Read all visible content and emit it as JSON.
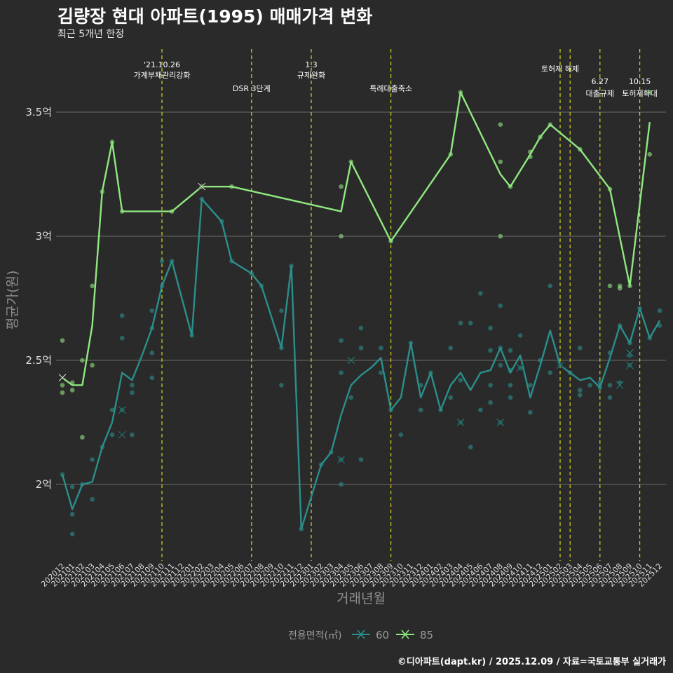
{
  "title": "김량장 현대 아파트(1995) 매매가격 변화",
  "subtitle": "최근 5개년 한정",
  "caption": "©디아파트(dapt.kr) / 2025.12.09 / 자료=국토교통부 실거래가",
  "chart_data": {
    "type": "line",
    "xlabel": "거래년월",
    "ylabel": "평균가(원)",
    "ylim": [
      1.7,
      3.75
    ],
    "yticks": [
      {
        "v": 2.0,
        "label": "2억"
      },
      {
        "v": 2.5,
        "label": "2.5억"
      },
      {
        "v": 3.0,
        "label": "3억"
      },
      {
        "v": 3.5,
        "label": "3.5억"
      }
    ],
    "months": [
      "202012",
      "202101",
      "202102",
      "202103",
      "202104",
      "202105",
      "202106",
      "202107",
      "202108",
      "202109",
      "202110",
      "202111",
      "202112",
      "202201",
      "202202",
      "202203",
      "202204",
      "202205",
      "202206",
      "202207",
      "202208",
      "202209",
      "202210",
      "202211",
      "202212",
      "202301",
      "202302",
      "202303",
      "202304",
      "202305",
      "202306",
      "202307",
      "202308",
      "202309",
      "202310",
      "202311",
      "202312",
      "202401",
      "202402",
      "202403",
      "202404",
      "202405",
      "202406",
      "202407",
      "202408",
      "202409",
      "202410",
      "202411",
      "202412",
      "202501",
      "202502",
      "202503",
      "202504",
      "202505",
      "202506",
      "202507",
      "202508",
      "202509",
      "202510",
      "202511",
      "202512"
    ],
    "legend": {
      "title": "전용면적(㎡)",
      "position": "bottom"
    },
    "series": [
      {
        "name": "60",
        "color": "#2a8f8b",
        "points": [
          [
            0,
            2.04
          ],
          [
            1,
            1.9
          ],
          [
            2,
            2.0
          ],
          [
            3,
            2.01
          ],
          [
            4,
            2.15
          ],
          [
            5,
            2.25
          ],
          [
            6,
            2.45
          ],
          [
            7,
            2.42
          ],
          [
            8,
            2.52
          ],
          [
            9,
            2.63
          ],
          [
            10,
            2.8
          ],
          [
            11,
            2.9
          ],
          [
            13,
            2.6
          ],
          [
            14,
            3.15
          ],
          [
            16,
            3.06
          ],
          [
            17,
            2.9
          ],
          [
            19,
            2.85
          ],
          [
            20,
            2.8
          ],
          [
            22,
            2.55
          ],
          [
            23,
            2.88
          ],
          [
            24,
            1.82
          ],
          [
            26,
            2.08
          ],
          [
            27,
            2.13
          ],
          [
            28,
            2.28
          ],
          [
            29,
            2.4
          ],
          [
            30,
            2.44
          ],
          [
            31,
            2.47
          ],
          [
            32,
            2.51
          ],
          [
            33,
            2.3
          ],
          [
            34,
            2.35
          ],
          [
            35,
            2.57
          ],
          [
            36,
            2.35
          ],
          [
            37,
            2.45
          ],
          [
            38,
            2.3
          ],
          [
            39,
            2.4
          ],
          [
            40,
            2.45
          ],
          [
            41,
            2.38
          ],
          [
            42,
            2.45
          ],
          [
            43,
            2.46
          ],
          [
            44,
            2.55
          ],
          [
            45,
            2.45
          ],
          [
            46,
            2.52
          ],
          [
            47,
            2.35
          ],
          [
            48,
            2.48
          ],
          [
            49,
            2.62
          ],
          [
            50,
            2.48
          ],
          [
            51,
            2.45
          ],
          [
            52,
            2.42
          ],
          [
            53,
            2.43
          ],
          [
            54,
            2.39
          ],
          [
            55,
            2.51
          ],
          [
            56,
            2.64
          ],
          [
            57,
            2.57
          ],
          [
            58,
            2.71
          ],
          [
            59,
            2.59
          ],
          [
            60,
            2.66
          ]
        ]
      },
      {
        "name": "85",
        "color": "#8fe87f",
        "points": [
          [
            0,
            2.43
          ],
          [
            1,
            2.4
          ],
          [
            2,
            2.4
          ],
          [
            3,
            2.64
          ],
          [
            4,
            3.18
          ],
          [
            5,
            3.38
          ],
          [
            6,
            3.1
          ],
          [
            10,
            3.1
          ],
          [
            11,
            3.1
          ],
          [
            14,
            3.2
          ],
          [
            17,
            3.2
          ],
          [
            28,
            3.1
          ],
          [
            29,
            3.3
          ],
          [
            33,
            2.98
          ],
          [
            39,
            3.33
          ],
          [
            40,
            3.58
          ],
          [
            44,
            3.25
          ],
          [
            45,
            3.2
          ],
          [
            47,
            3.33
          ],
          [
            48,
            3.4
          ],
          [
            49,
            3.45
          ],
          [
            52,
            3.35
          ],
          [
            55,
            3.19
          ],
          [
            57,
            2.8
          ],
          [
            59,
            3.46
          ]
        ]
      }
    ],
    "scatter_60": [
      [
        0,
        2.04
      ],
      [
        1,
        1.99
      ],
      [
        1,
        1.88
      ],
      [
        1,
        1.8
      ],
      [
        2,
        2.0
      ],
      [
        3,
        2.1
      ],
      [
        3,
        1.94
      ],
      [
        4,
        2.15
      ],
      [
        5,
        2.3
      ],
      [
        5,
        2.2
      ],
      [
        6,
        2.59
      ],
      [
        6,
        2.68
      ],
      [
        6,
        2.3
      ],
      [
        7,
        2.2
      ],
      [
        7,
        2.37
      ],
      [
        7,
        2.4
      ],
      [
        9,
        2.7
      ],
      [
        9,
        2.63
      ],
      [
        9,
        2.53
      ],
      [
        9,
        2.43
      ],
      [
        10,
        2.8
      ],
      [
        10,
        2.9
      ],
      [
        11,
        2.9
      ],
      [
        13,
        2.6
      ],
      [
        14,
        3.15
      ],
      [
        16,
        3.06
      ],
      [
        17,
        2.9
      ],
      [
        19,
        2.85
      ],
      [
        20,
        2.8
      ],
      [
        22,
        2.55
      ],
      [
        22,
        2.4
      ],
      [
        22,
        2.7
      ],
      [
        23,
        2.88
      ],
      [
        24,
        1.82
      ],
      [
        26,
        2.08
      ],
      [
        27,
        2.13
      ],
      [
        28,
        2.58
      ],
      [
        28,
        2.45
      ],
      [
        28,
        2.0
      ],
      [
        28,
        2.1
      ],
      [
        29,
        2.35
      ],
      [
        30,
        2.55
      ],
      [
        30,
        2.63
      ],
      [
        30,
        2.1
      ],
      [
        32,
        2.55
      ],
      [
        32,
        2.45
      ],
      [
        33,
        2.3
      ],
      [
        34,
        2.2
      ],
      [
        35,
        2.57
      ],
      [
        36,
        2.4
      ],
      [
        36,
        2.3
      ],
      [
        37,
        2.45
      ],
      [
        38,
        2.3
      ],
      [
        39,
        2.55
      ],
      [
        39,
        2.35
      ],
      [
        40,
        2.25
      ],
      [
        40,
        2.42
      ],
      [
        40,
        2.65
      ],
      [
        41,
        2.65
      ],
      [
        41,
        2.15
      ],
      [
        42,
        2.77
      ],
      [
        42,
        2.3
      ],
      [
        43,
        2.33
      ],
      [
        43,
        2.54
      ],
      [
        43,
        2.63
      ],
      [
        43,
        2.4
      ],
      [
        44,
        2.72
      ],
      [
        44,
        2.55
      ],
      [
        44,
        2.48
      ],
      [
        44,
        2.25
      ],
      [
        45,
        2.46
      ],
      [
        45,
        2.54
      ],
      [
        45,
        2.35
      ],
      [
        45,
        2.4
      ],
      [
        46,
        2.47
      ],
      [
        46,
        2.6
      ],
      [
        47,
        2.4
      ],
      [
        47,
        2.29
      ],
      [
        48,
        2.5
      ],
      [
        49,
        2.8
      ],
      [
        49,
        2.45
      ],
      [
        50,
        2.48
      ],
      [
        51,
        2.45
      ],
      [
        52,
        2.55
      ],
      [
        52,
        2.38
      ],
      [
        52,
        2.36
      ],
      [
        53,
        2.4
      ],
      [
        54,
        2.41
      ],
      [
        54,
        2.39
      ],
      [
        55,
        2.53
      ],
      [
        55,
        2.4
      ],
      [
        55,
        2.35
      ],
      [
        56,
        2.64
      ],
      [
        56,
        2.41
      ],
      [
        57,
        2.57
      ],
      [
        57,
        2.52
      ],
      [
        57,
        2.48
      ],
      [
        58,
        2.71
      ],
      [
        59,
        2.59
      ],
      [
        60,
        2.64
      ],
      [
        60,
        2.7
      ]
    ],
    "scatter_85": [
      [
        0,
        2.58
      ],
      [
        0,
        2.4
      ],
      [
        0,
        2.37
      ],
      [
        1,
        2.41
      ],
      [
        1,
        2.38
      ],
      [
        2,
        2.5
      ],
      [
        2,
        2.19
      ],
      [
        3,
        2.8
      ],
      [
        3,
        2.48
      ],
      [
        4,
        3.18
      ],
      [
        5,
        3.38
      ],
      [
        6,
        3.1
      ],
      [
        11,
        3.1
      ],
      [
        14,
        3.2
      ],
      [
        17,
        3.2
      ],
      [
        28,
        3.2
      ],
      [
        28,
        3.0
      ],
      [
        29,
        3.3
      ],
      [
        33,
        2.98
      ],
      [
        39,
        3.33
      ],
      [
        40,
        3.58
      ],
      [
        44,
        3.45
      ],
      [
        44,
        3.3
      ],
      [
        44,
        3.0
      ],
      [
        45,
        3.2
      ],
      [
        47,
        3.32
      ],
      [
        47,
        3.34
      ],
      [
        48,
        3.4
      ],
      [
        49,
        3.45
      ],
      [
        52,
        3.35
      ],
      [
        55,
        3.19
      ],
      [
        55,
        2.8
      ],
      [
        56,
        2.79
      ],
      [
        56,
        2.8
      ],
      [
        57,
        2.8
      ],
      [
        59,
        3.33
      ],
      [
        59,
        3.58
      ]
    ],
    "cross_60": [
      [
        6,
        2.3
      ],
      [
        6,
        2.2
      ],
      [
        29,
        2.5
      ],
      [
        28,
        2.1
      ],
      [
        40,
        2.25
      ],
      [
        44,
        2.25
      ],
      [
        46,
        2.47
      ],
      [
        50,
        2.48
      ],
      [
        56,
        2.4
      ],
      [
        57,
        2.53
      ],
      [
        57,
        2.48
      ]
    ],
    "cross_85": [
      [
        0,
        2.43
      ],
      [
        14,
        3.2
      ]
    ],
    "events": [
      {
        "label": "'21.10.26\n가계부채관리강화",
        "month_index": 10,
        "row": 0
      },
      {
        "label": "DSR 3단계",
        "month_index": 19,
        "row": 1
      },
      {
        "label": "1.3\n규제완화",
        "month_index": 25,
        "row": 0
      },
      {
        "label": "특례대출축소",
        "month_index": 33,
        "row": 1
      },
      {
        "label": "토허제 해제",
        "month_index": 50,
        "row": 0.5
      },
      {
        "label": "",
        "month_index": 51,
        "row": 0
      },
      {
        "label": "6.27\n대출규제",
        "month_index": 54,
        "row": 2
      },
      {
        "label": "10.15\n토허제확대",
        "month_index": 58,
        "row": 2
      }
    ]
  }
}
